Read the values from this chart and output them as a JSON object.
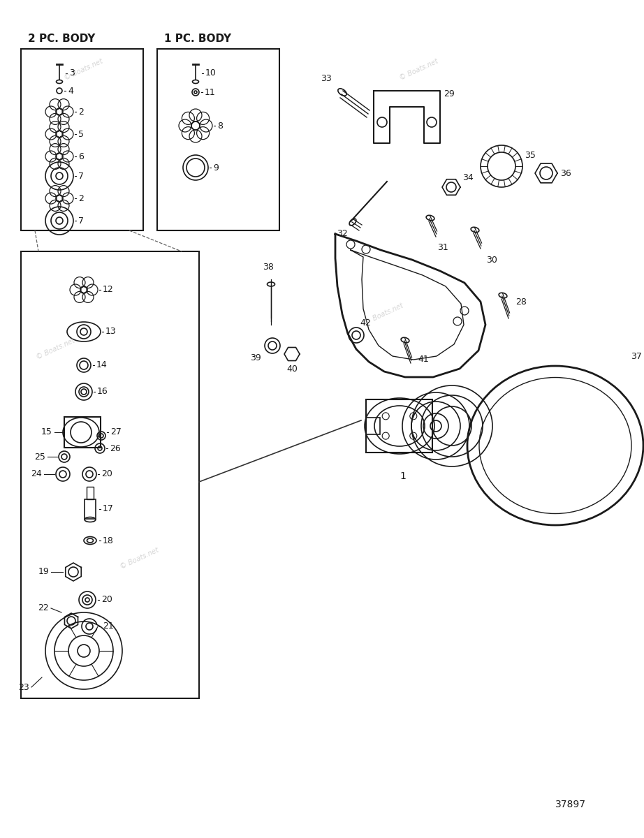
{
  "bg_color": "#ffffff",
  "line_color": "#1a1a1a",
  "part_number": "37897",
  "title_2pc": "2 PC. BODY",
  "title_1pc": "1 PC. BODY"
}
